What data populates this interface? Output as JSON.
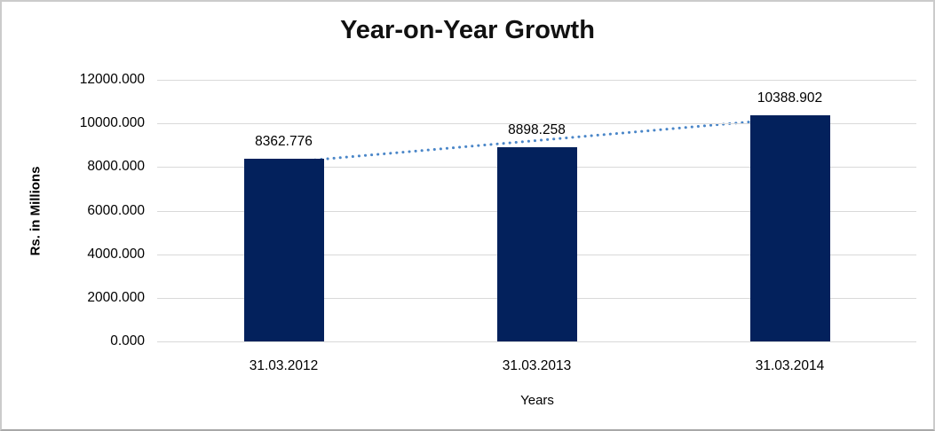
{
  "chart_data": {
    "type": "bar",
    "title": "Year-on-Year Growth",
    "xlabel": "Years",
    "ylabel": "Rs. in Millions",
    "categories": [
      "31.03.2012",
      "31.03.2013",
      "31.03.2014"
    ],
    "values": [
      8362.776,
      8898.258,
      10388.902
    ],
    "data_labels": [
      "8362.776",
      "8898.258",
      "10388.902"
    ],
    "ylim": [
      0,
      12000
    ],
    "ytick_interval": 2000,
    "ytick_labels": [
      "0.000",
      "2000.000",
      "4000.000",
      "6000.000",
      "8000.000",
      "10000.000",
      "12000.000"
    ],
    "grid": true,
    "legend": "none",
    "trendline": {
      "type": "linear",
      "style": "dotted"
    },
    "colors": {
      "bar": "#03215c",
      "gridline": "#d9d9d9",
      "trendline": "#4a86c8",
      "text": "#000000",
      "background": "#ffffff",
      "frame_border": "#c9c9c9"
    }
  }
}
